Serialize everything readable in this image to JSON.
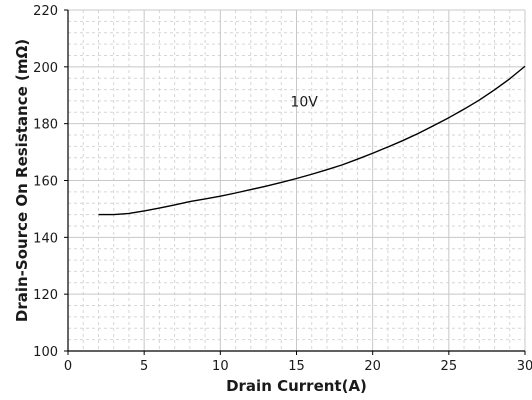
{
  "chart_data": {
    "type": "line",
    "xlabel": "Drain Current(A)",
    "ylabel": "Drain-Source On Resistance (mΩ)",
    "xlim": [
      0,
      30
    ],
    "ylim": [
      100,
      220
    ],
    "xticks": [
      0,
      5,
      10,
      15,
      20,
      25,
      30
    ],
    "yticks": [
      100,
      120,
      140,
      160,
      180,
      200,
      220
    ],
    "x_tick_labels": [
      "0",
      "5",
      "10",
      "15",
      "20",
      "25",
      "30"
    ],
    "y_tick_labels": [
      "100",
      "120",
      "140",
      "160",
      "180",
      "200",
      "220"
    ],
    "grid": true,
    "grid_minor": true,
    "series": [
      {
        "name": "10V",
        "x": [
          2,
          3,
          4,
          5,
          6,
          7,
          8,
          9,
          10,
          11,
          12,
          13,
          14,
          15,
          16,
          17,
          18,
          19,
          20,
          21,
          22,
          23,
          24,
          25,
          26,
          27,
          28,
          29,
          30
        ],
        "y": [
          148,
          148,
          148.4,
          149.3,
          150.3,
          151.4,
          152.6,
          153.5,
          154.5,
          155.6,
          156.8,
          158,
          159.3,
          160.7,
          162.2,
          163.8,
          165.5,
          167.5,
          169.6,
          171.8,
          174.1,
          176.6,
          179.3,
          182.1,
          185.1,
          188.3,
          191.9,
          195.8,
          200.2
        ]
      }
    ],
    "annotations": [
      {
        "text": "10V",
        "x": 15.5,
        "y": 186
      }
    ],
    "colors": {
      "line": "#000000",
      "axis": "#000000",
      "grid_major": "#c8c8c8",
      "grid_minor": "#d6d6d6",
      "background": "#ffffff"
    }
  }
}
